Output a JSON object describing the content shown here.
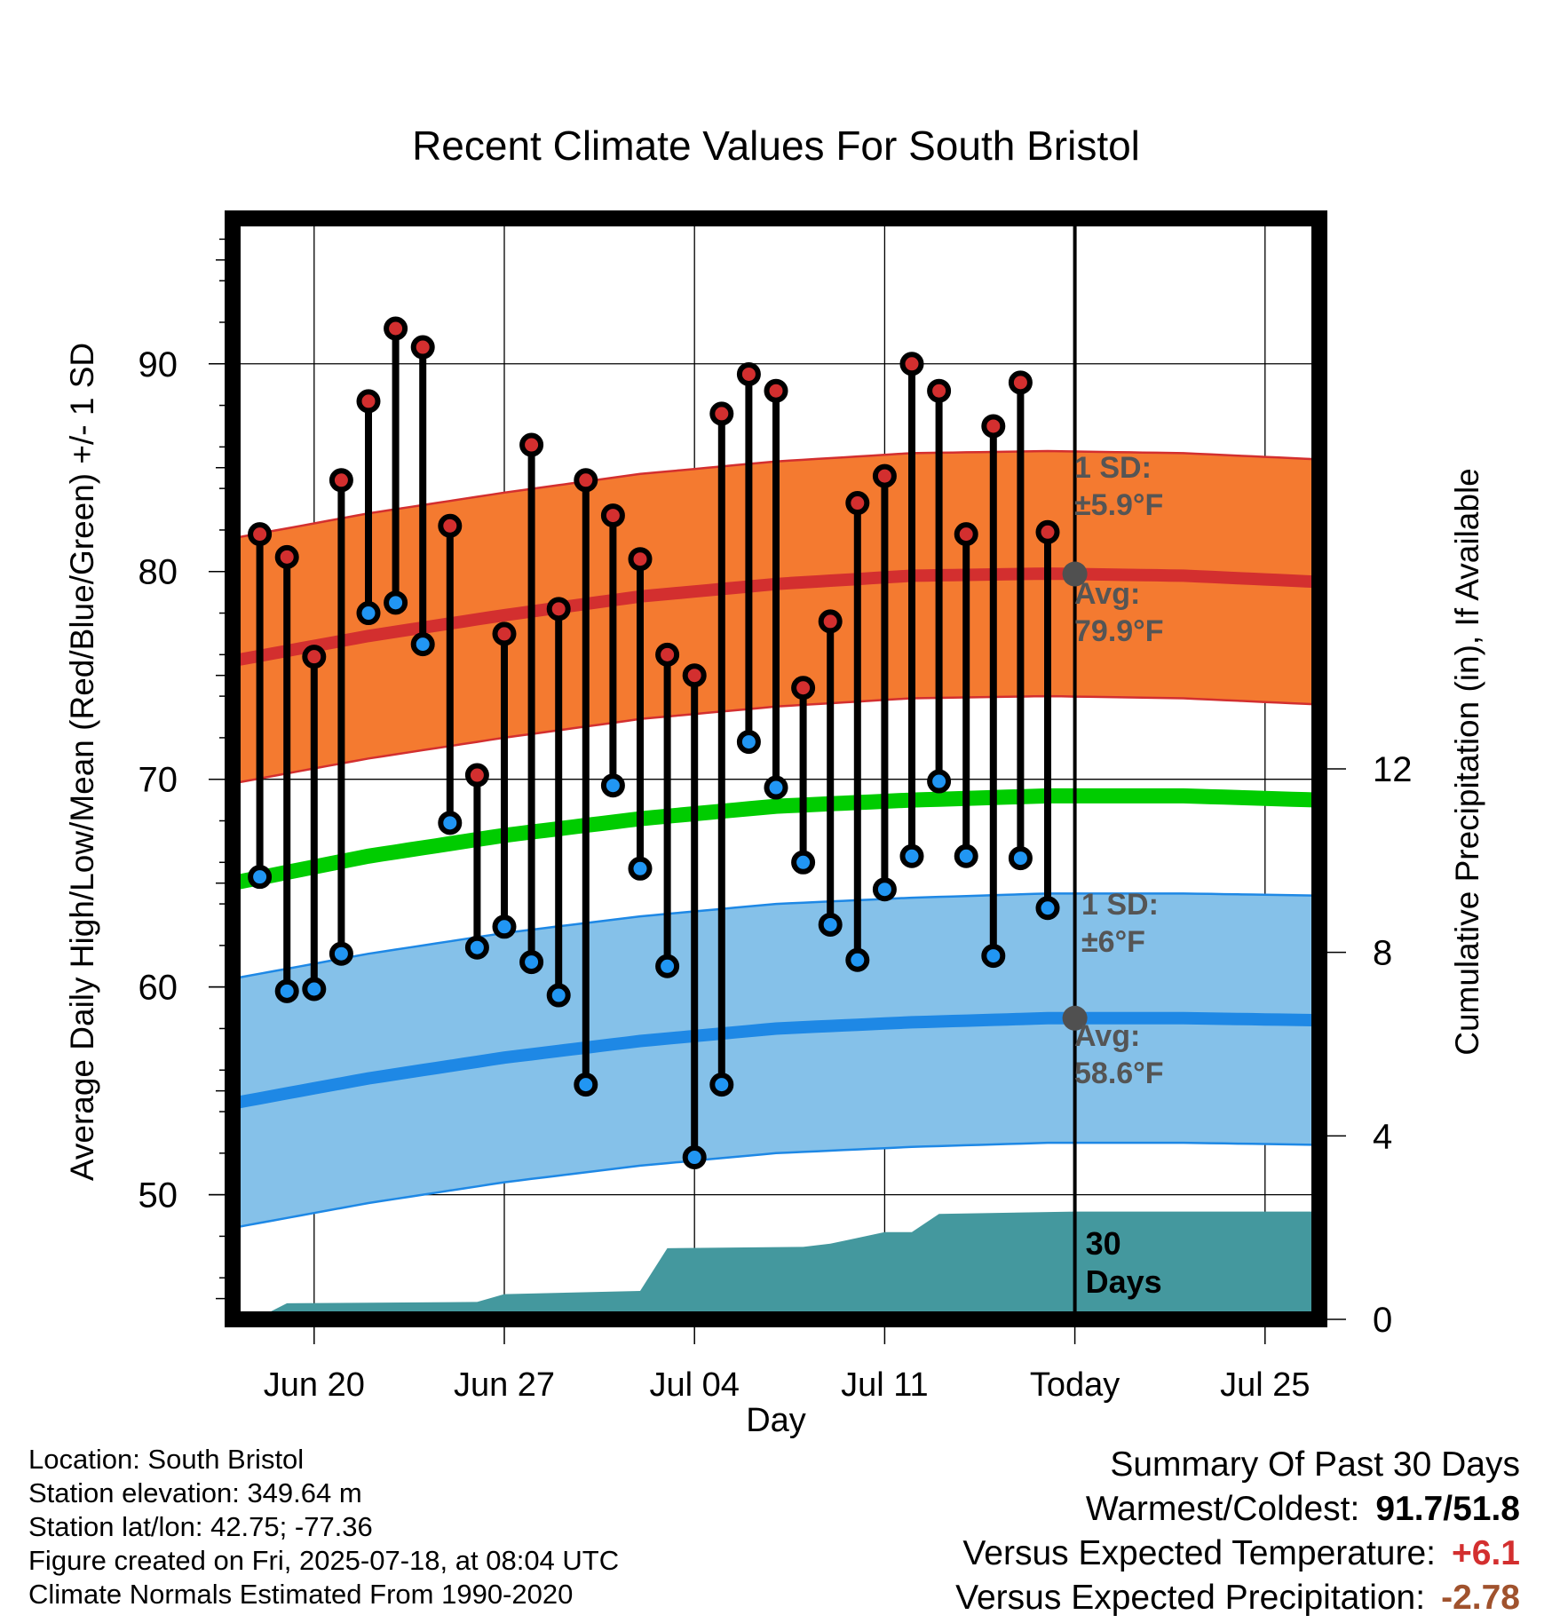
{
  "chart_data": {
    "type": "line",
    "title": "Recent Climate Values For South Bristol",
    "xlabel": "Day",
    "ylabel": "Average Daily High/Low/Mean (Red/Blue/Green) +/- 1 SD",
    "y2label": "Cumulative Precipitation (in), If Available",
    "x_range": [
      "2025-06-17",
      "2025-07-27"
    ],
    "ylim": [
      44,
      97
    ],
    "y2lim": [
      0,
      24
    ],
    "yticks": [
      50,
      60,
      70,
      80,
      90
    ],
    "y2ticks": [
      0,
      4,
      8,
      12
    ],
    "xticks": [
      {
        "date": "2025-06-20",
        "label": "Jun 20"
      },
      {
        "date": "2025-06-27",
        "label": "Jun 27"
      },
      {
        "date": "2025-07-04",
        "label": "Jul 04"
      },
      {
        "date": "2025-07-11",
        "label": "Jul 11"
      },
      {
        "date": "2025-07-18",
        "label": "Today"
      },
      {
        "date": "2025-07-25",
        "label": "Jul 25"
      }
    ],
    "grid": true,
    "today": "2025-07-18",
    "today_label": "30 Days",
    "observed": {
      "dates": [
        "2025-06-18",
        "2025-06-19",
        "2025-06-20",
        "2025-06-21",
        "2025-06-22",
        "2025-06-23",
        "2025-06-24",
        "2025-06-25",
        "2025-06-26",
        "2025-06-27",
        "2025-06-28",
        "2025-06-29",
        "2025-06-30",
        "2025-07-01",
        "2025-07-02",
        "2025-07-03",
        "2025-07-04",
        "2025-07-05",
        "2025-07-06",
        "2025-07-07",
        "2025-07-08",
        "2025-07-09",
        "2025-07-10",
        "2025-07-11",
        "2025-07-12",
        "2025-07-13",
        "2025-07-14",
        "2025-07-15",
        "2025-07-16",
        "2025-07-17"
      ],
      "highs": [
        81.8,
        80.7,
        75.9,
        84.4,
        88.2,
        91.7,
        90.8,
        82.2,
        70.2,
        77.0,
        86.1,
        78.2,
        84.4,
        82.7,
        80.6,
        76.0,
        75.0,
        87.6,
        89.5,
        88.7,
        74.4,
        77.6,
        83.3,
        84.6,
        90.0,
        88.7,
        81.8,
        87.0,
        89.1,
        81.9
      ],
      "lows": [
        65.3,
        59.8,
        59.9,
        61.6,
        78.0,
        78.5,
        76.5,
        67.9,
        61.9,
        62.9,
        61.2,
        59.6,
        55.3,
        69.7,
        65.7,
        61.0,
        51.8,
        55.3,
        71.8,
        69.6,
        66.0,
        63.0,
        61.3,
        64.7,
        66.3,
        69.9,
        66.3,
        61.5,
        66.2,
        63.8
      ],
      "high_color": "#d32f2f",
      "low_color": "#2196f3"
    },
    "normals": {
      "dates": [
        "2025-06-17",
        "2025-06-22",
        "2025-06-27",
        "2025-07-02",
        "2025-07-07",
        "2025-07-12",
        "2025-07-17",
        "2025-07-22",
        "2025-07-27"
      ],
      "avg_high": [
        75.7,
        76.9,
        77.9,
        78.8,
        79.4,
        79.8,
        79.9,
        79.8,
        79.5
      ],
      "avg_high_sd": 5.9,
      "avg_low": [
        54.4,
        55.6,
        56.6,
        57.4,
        58.0,
        58.3,
        58.5,
        58.5,
        58.4
      ],
      "avg_low_sd": 6.0,
      "avg_mean": [
        65.0,
        66.3,
        67.3,
        68.1,
        68.7,
        69.0,
        69.2,
        69.2,
        69.0
      ],
      "band_high_color": "#f47a30",
      "band_low_color": "#85c1e9",
      "mean_color": "#00cc00",
      "labels": {
        "high_sd": [
          "1 SD:",
          "±5.9°F"
        ],
        "high_avg": [
          "Avg:",
          "79.9°F"
        ],
        "low_sd": [
          "1 SD:",
          "±6°F"
        ],
        "low_avg": [
          "Avg:",
          "58.6°F"
        ]
      }
    },
    "precipitation": {
      "dates": [
        "2025-06-17",
        "2025-06-18",
        "2025-06-19",
        "2025-06-26",
        "2025-06-27",
        "2025-07-02",
        "2025-07-03",
        "2025-07-08",
        "2025-07-09",
        "2025-07-11",
        "2025-07-12",
        "2025-07-13",
        "2025-07-18",
        "2025-07-27"
      ],
      "cumulative": [
        0.0,
        0.05,
        0.35,
        0.38,
        0.55,
        0.62,
        1.55,
        1.58,
        1.65,
        1.9,
        1.9,
        2.3,
        2.35,
        2.35
      ],
      "color": "#44989e"
    }
  },
  "station": {
    "location": "Location: South Bristol",
    "elevation": "Station elevation: 349.64 m",
    "latlon": "Station lat/lon: 42.75; -77.36",
    "created": "Figure created on Fri, 2025-07-18, at 08:04 UTC",
    "normals_period": "Climate Normals Estimated From 1990-2020"
  },
  "summary": {
    "title": "Summary Of Past 30 Days",
    "warmest_coldest_label": "Warmest/Coldest:",
    "warmest_coldest_value": "91.7/51.8",
    "temp_label": "Versus Expected Temperature:",
    "temp_value": "+6.1",
    "precip_label": "Versus Expected Precipitation:",
    "precip_value": "-2.78"
  }
}
